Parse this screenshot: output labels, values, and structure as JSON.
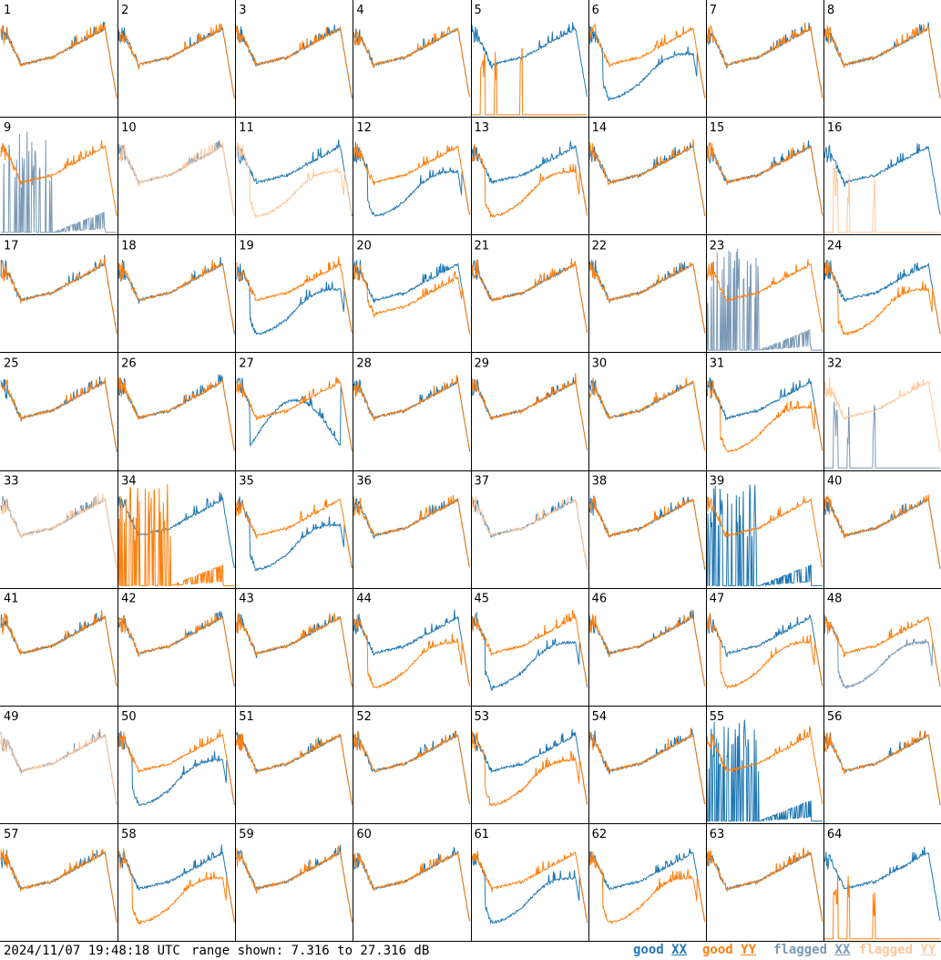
{
  "chart_data": {
    "type": "line",
    "panel_count": 64,
    "rows": 8,
    "cols": 8,
    "panel_labels": [
      "1",
      "2",
      "3",
      "4",
      "5",
      "6",
      "7",
      "8",
      "9",
      "10",
      "11",
      "12",
      "13",
      "14",
      "15",
      "16",
      "17",
      "18",
      "19",
      "20",
      "21",
      "22",
      "23",
      "24",
      "25",
      "26",
      "27",
      "28",
      "29",
      "30",
      "31",
      "32",
      "33",
      "34",
      "35",
      "36",
      "37",
      "38",
      "39",
      "40",
      "41",
      "42",
      "43",
      "44",
      "45",
      "46",
      "47",
      "48",
      "49",
      "50",
      "51",
      "52",
      "53",
      "54",
      "55",
      "56",
      "57",
      "58",
      "59",
      "60",
      "61",
      "62",
      "63",
      "64"
    ],
    "range_db": [
      7.316,
      27.316
    ],
    "series_colors": {
      "good_xx": "#1f77b4",
      "good_yy": "#ff7f0e",
      "flagged_xx": "#7a99b6",
      "flagged_yy": "#ffc79a"
    },
    "panels": {
      "5": {
        "xx": "normal",
        "yy": "dropout"
      },
      "6": {
        "xx": "low",
        "yy": "normal"
      },
      "9": {
        "xx": "flagged_spikes",
        "yy": "normal"
      },
      "10": {
        "xx": "flagged_normal",
        "yy": "flagged_normal"
      },
      "11": {
        "xx": "normal",
        "yy": "flagged_low"
      },
      "12": {
        "xx": "low",
        "yy": "normal"
      },
      "13": {
        "xx": "normal",
        "yy": "low"
      },
      "16": {
        "xx": "normal",
        "yy": "flagged_dropout"
      },
      "19": {
        "xx": "low",
        "yy": "normal"
      },
      "20": {
        "xx": "normal",
        "yy": "mid"
      },
      "23": {
        "xx": "flagged_spikes",
        "yy": "normal"
      },
      "24": {
        "xx": "normal",
        "yy": "low"
      },
      "27": {
        "xx": "dip",
        "yy": "normal"
      },
      "31": {
        "xx": "normal",
        "yy": "low"
      },
      "32": {
        "xx": "flagged_dropout",
        "yy": "flagged_normal"
      },
      "33": {
        "xx": "flagged_normal",
        "yy": "flagged_normal"
      },
      "34": {
        "xx": "normal",
        "yy": "spikes"
      },
      "35": {
        "xx": "low",
        "yy": "normal"
      },
      "37": {
        "xx": "normal",
        "yy": "flagged_normal"
      },
      "39": {
        "xx": "spikes",
        "yy": "normal"
      },
      "44": {
        "xx": "normal",
        "yy": "low"
      },
      "45": {
        "xx": "low",
        "yy": "normal"
      },
      "47": {
        "xx": "normal",
        "yy": "low"
      },
      "48": {
        "xx": "flagged_low",
        "yy": "normal"
      },
      "49": {
        "xx": "flagged_normal",
        "yy": "flagged_normal"
      },
      "50": {
        "xx": "low",
        "yy": "normal"
      },
      "53": {
        "xx": "normal",
        "yy": "low"
      },
      "55": {
        "xx": "spikes",
        "yy": "normal"
      },
      "58": {
        "xx": "normal",
        "yy": "low"
      },
      "61": {
        "xx": "low",
        "yy": "normal"
      },
      "62": {
        "xx": "normal",
        "yy": "low"
      },
      "64": {
        "xx": "normal",
        "yy": "dropout"
      }
    }
  },
  "footer": {
    "timestamp": "2024/11/07 19:48:18 UTC",
    "range_text": "range shown: 7.316 to 27.316 dB"
  },
  "legend": {
    "good_word": "good",
    "flagged_word": "flagged",
    "xx": "XX",
    "yy": "YY"
  }
}
